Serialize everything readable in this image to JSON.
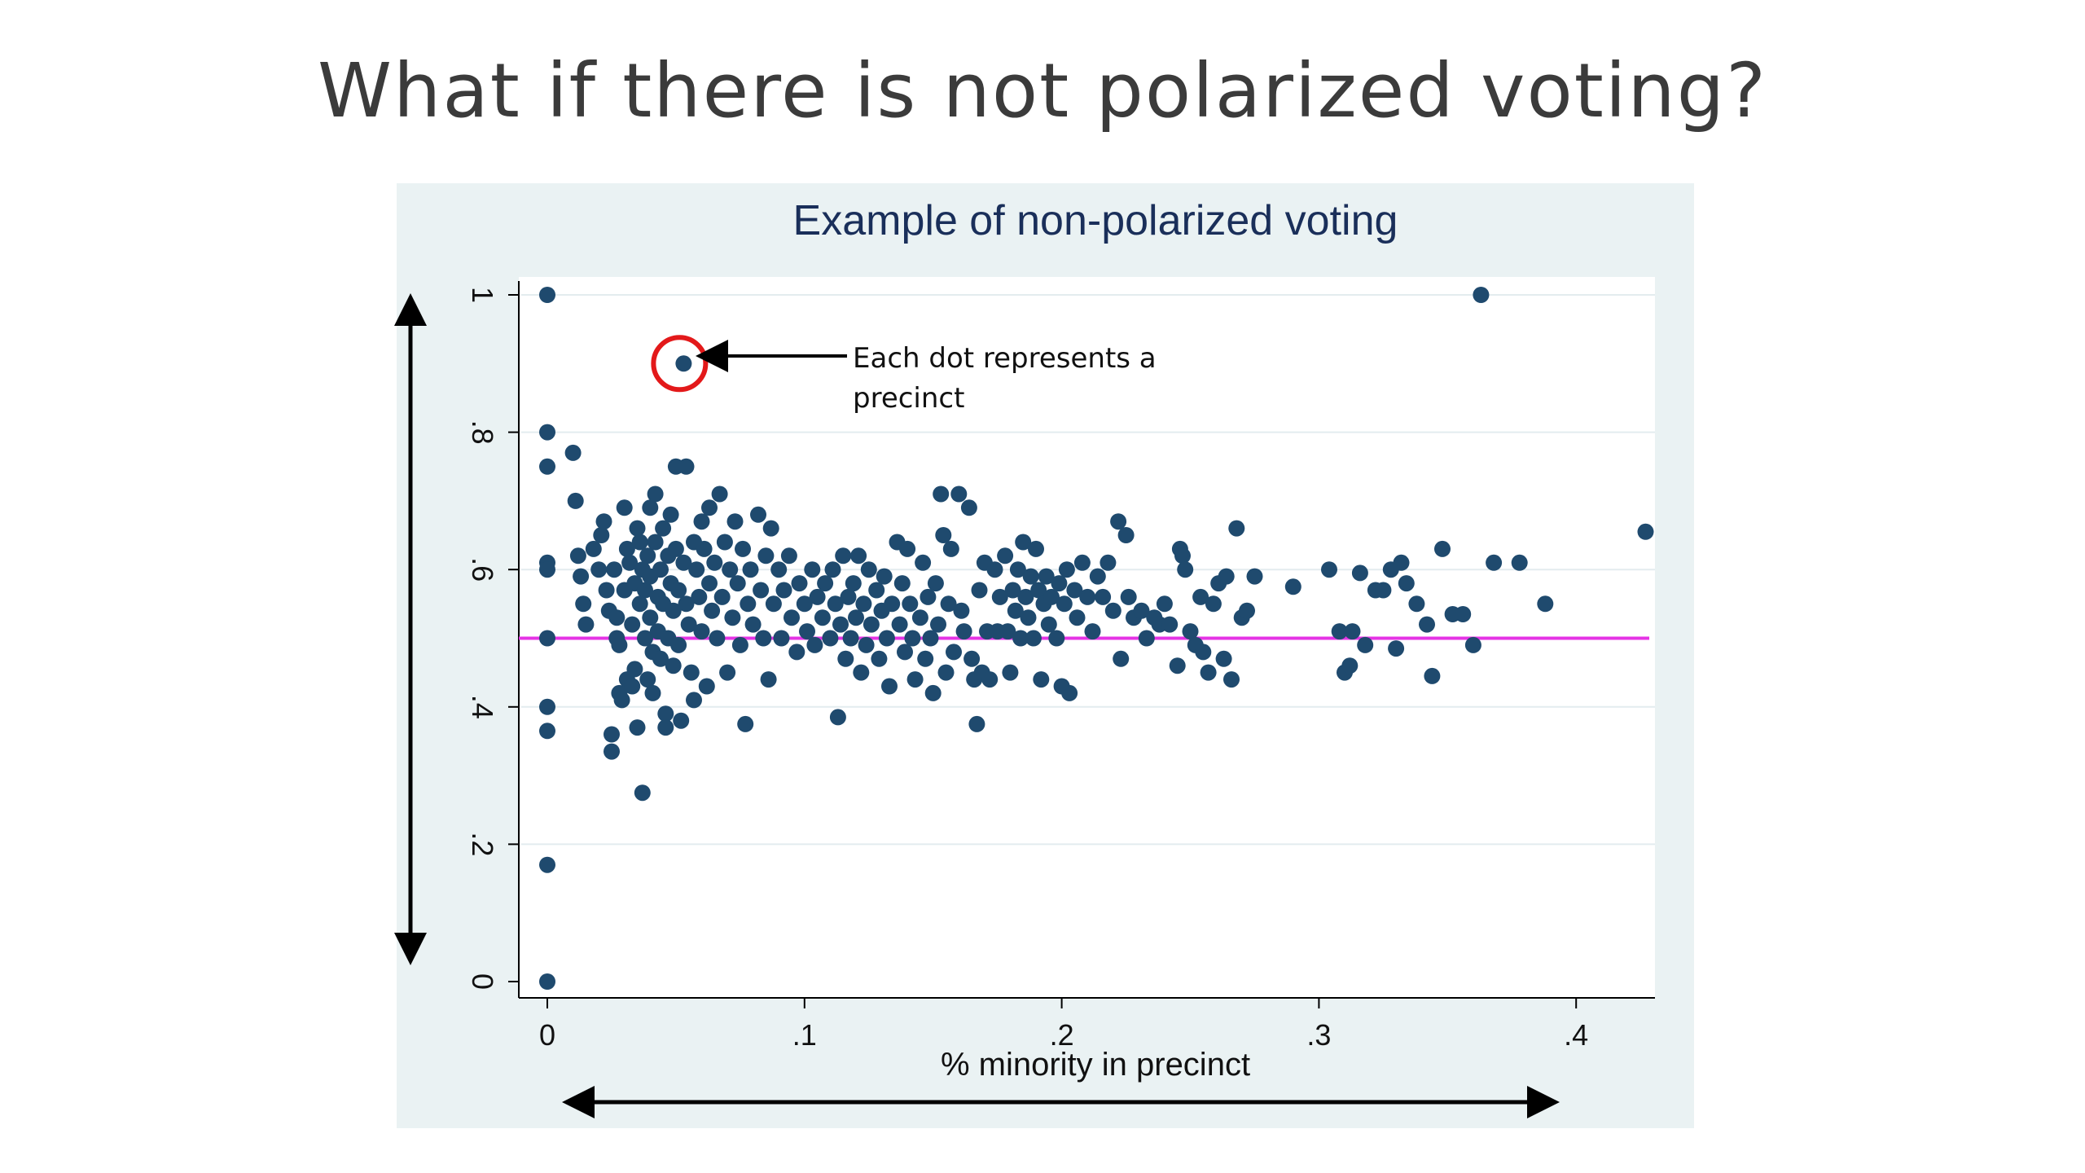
{
  "slide": {
    "title": "What if there is not polarized voting?"
  },
  "annotation": {
    "line1": "Each dot represents a",
    "line2": "precinct",
    "highlight_color": "#e3191a"
  },
  "colors": {
    "plot_background": "#eaf2f3",
    "inner_plot": "#ffffff",
    "dot": "#1f4a6e",
    "reference_line": "#e533e5",
    "title_text": "#1a2f5a",
    "arrows": "#000000"
  },
  "chart_data": {
    "type": "scatter",
    "title": "Example of non-polarized voting",
    "xlabel": "% minority in precinct",
    "ylabel": "",
    "xlim": [
      0,
      0.435
    ],
    "ylim": [
      0,
      1
    ],
    "xticks": [
      "0",
      ".1",
      ".2",
      ".3",
      ".4"
    ],
    "yticks": [
      "0",
      ".2",
      ".4",
      ".6",
      ".8",
      "1"
    ],
    "grid": "horizontal",
    "legend": "none",
    "reference_line_y": 0.5,
    "highlighted_point": [
      0.053,
      0.9
    ],
    "points": [
      [
        0.0,
        1.0
      ],
      [
        0.0,
        0.8
      ],
      [
        0.0,
        0.75
      ],
      [
        0.0,
        0.61
      ],
      [
        0.0,
        0.6
      ],
      [
        0.0,
        0.5
      ],
      [
        0.0,
        0.4
      ],
      [
        0.0,
        0.365
      ],
      [
        0.0,
        0.17
      ],
      [
        0.0,
        0.0
      ],
      [
        0.053,
        0.9
      ],
      [
        0.363,
        1.0
      ],
      [
        0.01,
        0.77
      ],
      [
        0.011,
        0.7
      ],
      [
        0.012,
        0.62
      ],
      [
        0.013,
        0.59
      ],
      [
        0.014,
        0.55
      ],
      [
        0.015,
        0.52
      ],
      [
        0.018,
        0.63
      ],
      [
        0.02,
        0.6
      ],
      [
        0.021,
        0.65
      ],
      [
        0.022,
        0.67
      ],
      [
        0.023,
        0.57
      ],
      [
        0.024,
        0.54
      ],
      [
        0.025,
        0.36
      ],
      [
        0.025,
        0.335
      ],
      [
        0.026,
        0.6
      ],
      [
        0.027,
        0.5
      ],
      [
        0.027,
        0.53
      ],
      [
        0.028,
        0.49
      ],
      [
        0.028,
        0.42
      ],
      [
        0.029,
        0.41
      ],
      [
        0.03,
        0.69
      ],
      [
        0.03,
        0.57
      ],
      [
        0.031,
        0.63
      ],
      [
        0.031,
        0.44
      ],
      [
        0.032,
        0.61
      ],
      [
        0.033,
        0.52
      ],
      [
        0.033,
        0.43
      ],
      [
        0.034,
        0.58
      ],
      [
        0.034,
        0.455
      ],
      [
        0.035,
        0.66
      ],
      [
        0.035,
        0.37
      ],
      [
        0.036,
        0.64
      ],
      [
        0.036,
        0.55
      ],
      [
        0.037,
        0.6
      ],
      [
        0.037,
        0.275
      ],
      [
        0.038,
        0.57
      ],
      [
        0.038,
        0.5
      ],
      [
        0.039,
        0.62
      ],
      [
        0.039,
        0.44
      ],
      [
        0.04,
        0.69
      ],
      [
        0.04,
        0.59
      ],
      [
        0.04,
        0.53
      ],
      [
        0.041,
        0.48
      ],
      [
        0.041,
        0.42
      ],
      [
        0.042,
        0.71
      ],
      [
        0.042,
        0.64
      ],
      [
        0.043,
        0.56
      ],
      [
        0.043,
        0.51
      ],
      [
        0.044,
        0.6
      ],
      [
        0.044,
        0.47
      ],
      [
        0.045,
        0.66
      ],
      [
        0.045,
        0.55
      ],
      [
        0.046,
        0.39
      ],
      [
        0.046,
        0.37
      ],
      [
        0.047,
        0.62
      ],
      [
        0.047,
        0.5
      ],
      [
        0.048,
        0.68
      ],
      [
        0.048,
        0.58
      ],
      [
        0.049,
        0.54
      ],
      [
        0.049,
        0.46
      ],
      [
        0.05,
        0.75
      ],
      [
        0.05,
        0.63
      ],
      [
        0.051,
        0.57
      ],
      [
        0.051,
        0.49
      ],
      [
        0.052,
        0.38
      ],
      [
        0.053,
        0.61
      ],
      [
        0.054,
        0.75
      ],
      [
        0.054,
        0.55
      ],
      [
        0.055,
        0.52
      ],
      [
        0.056,
        0.45
      ],
      [
        0.057,
        0.64
      ],
      [
        0.057,
        0.41
      ],
      [
        0.058,
        0.6
      ],
      [
        0.059,
        0.56
      ],
      [
        0.06,
        0.67
      ],
      [
        0.06,
        0.51
      ],
      [
        0.061,
        0.63
      ],
      [
        0.062,
        0.43
      ],
      [
        0.063,
        0.69
      ],
      [
        0.063,
        0.58
      ],
      [
        0.064,
        0.54
      ],
      [
        0.065,
        0.61
      ],
      [
        0.066,
        0.5
      ],
      [
        0.067,
        0.71
      ],
      [
        0.068,
        0.56
      ],
      [
        0.069,
        0.64
      ],
      [
        0.07,
        0.45
      ],
      [
        0.071,
        0.6
      ],
      [
        0.072,
        0.53
      ],
      [
        0.073,
        0.67
      ],
      [
        0.074,
        0.58
      ],
      [
        0.075,
        0.49
      ],
      [
        0.076,
        0.63
      ],
      [
        0.077,
        0.375
      ],
      [
        0.078,
        0.55
      ],
      [
        0.079,
        0.6
      ],
      [
        0.08,
        0.52
      ],
      [
        0.082,
        0.68
      ],
      [
        0.083,
        0.57
      ],
      [
        0.084,
        0.5
      ],
      [
        0.085,
        0.62
      ],
      [
        0.086,
        0.44
      ],
      [
        0.087,
        0.66
      ],
      [
        0.088,
        0.55
      ],
      [
        0.09,
        0.6
      ],
      [
        0.091,
        0.5
      ],
      [
        0.092,
        0.57
      ],
      [
        0.094,
        0.62
      ],
      [
        0.095,
        0.53
      ],
      [
        0.097,
        0.48
      ],
      [
        0.098,
        0.58
      ],
      [
        0.1,
        0.55
      ],
      [
        0.101,
        0.51
      ],
      [
        0.103,
        0.6
      ],
      [
        0.104,
        0.49
      ],
      [
        0.105,
        0.56
      ],
      [
        0.107,
        0.53
      ],
      [
        0.108,
        0.58
      ],
      [
        0.11,
        0.5
      ],
      [
        0.111,
        0.6
      ],
      [
        0.112,
        0.55
      ],
      [
        0.113,
        0.385
      ],
      [
        0.114,
        0.52
      ],
      [
        0.115,
        0.62
      ],
      [
        0.116,
        0.47
      ],
      [
        0.117,
        0.56
      ],
      [
        0.118,
        0.5
      ],
      [
        0.119,
        0.58
      ],
      [
        0.12,
        0.53
      ],
      [
        0.121,
        0.62
      ],
      [
        0.122,
        0.45
      ],
      [
        0.123,
        0.55
      ],
      [
        0.124,
        0.49
      ],
      [
        0.125,
        0.6
      ],
      [
        0.126,
        0.52
      ],
      [
        0.128,
        0.57
      ],
      [
        0.129,
        0.47
      ],
      [
        0.13,
        0.54
      ],
      [
        0.131,
        0.59
      ],
      [
        0.132,
        0.5
      ],
      [
        0.133,
        0.43
      ],
      [
        0.134,
        0.55
      ],
      [
        0.136,
        0.64
      ],
      [
        0.137,
        0.52
      ],
      [
        0.138,
        0.58
      ],
      [
        0.139,
        0.48
      ],
      [
        0.14,
        0.63
      ],
      [
        0.141,
        0.55
      ],
      [
        0.142,
        0.5
      ],
      [
        0.143,
        0.44
      ],
      [
        0.145,
        0.53
      ],
      [
        0.146,
        0.61
      ],
      [
        0.147,
        0.47
      ],
      [
        0.148,
        0.56
      ],
      [
        0.149,
        0.5
      ],
      [
        0.15,
        0.42
      ],
      [
        0.151,
        0.58
      ],
      [
        0.152,
        0.52
      ],
      [
        0.153,
        0.71
      ],
      [
        0.154,
        0.65
      ],
      [
        0.155,
        0.45
      ],
      [
        0.156,
        0.55
      ],
      [
        0.157,
        0.63
      ],
      [
        0.158,
        0.48
      ],
      [
        0.16,
        0.71
      ],
      [
        0.161,
        0.54
      ],
      [
        0.162,
        0.51
      ],
      [
        0.164,
        0.69
      ],
      [
        0.165,
        0.47
      ],
      [
        0.166,
        0.44
      ],
      [
        0.167,
        0.375
      ],
      [
        0.168,
        0.57
      ],
      [
        0.169,
        0.45
      ],
      [
        0.17,
        0.61
      ],
      [
        0.171,
        0.51
      ],
      [
        0.172,
        0.44
      ],
      [
        0.174,
        0.6
      ],
      [
        0.175,
        0.51
      ],
      [
        0.176,
        0.56
      ],
      [
        0.178,
        0.62
      ],
      [
        0.179,
        0.51
      ],
      [
        0.18,
        0.45
      ],
      [
        0.181,
        0.57
      ],
      [
        0.182,
        0.54
      ],
      [
        0.183,
        0.6
      ],
      [
        0.184,
        0.5
      ],
      [
        0.185,
        0.64
      ],
      [
        0.186,
        0.56
      ],
      [
        0.187,
        0.53
      ],
      [
        0.188,
        0.59
      ],
      [
        0.189,
        0.5
      ],
      [
        0.19,
        0.63
      ],
      [
        0.191,
        0.57
      ],
      [
        0.192,
        0.44
      ],
      [
        0.193,
        0.55
      ],
      [
        0.194,
        0.59
      ],
      [
        0.195,
        0.52
      ],
      [
        0.196,
        0.56
      ],
      [
        0.198,
        0.5
      ],
      [
        0.199,
        0.58
      ],
      [
        0.2,
        0.43
      ],
      [
        0.201,
        0.55
      ],
      [
        0.202,
        0.6
      ],
      [
        0.203,
        0.42
      ],
      [
        0.205,
        0.57
      ],
      [
        0.206,
        0.53
      ],
      [
        0.208,
        0.61
      ],
      [
        0.21,
        0.56
      ],
      [
        0.212,
        0.51
      ],
      [
        0.214,
        0.59
      ],
      [
        0.216,
        0.56
      ],
      [
        0.218,
        0.61
      ],
      [
        0.22,
        0.54
      ],
      [
        0.222,
        0.67
      ],
      [
        0.223,
        0.47
      ],
      [
        0.225,
        0.65
      ],
      [
        0.226,
        0.56
      ],
      [
        0.228,
        0.53
      ],
      [
        0.231,
        0.54
      ],
      [
        0.233,
        0.5
      ],
      [
        0.236,
        0.53
      ],
      [
        0.238,
        0.52
      ],
      [
        0.24,
        0.55
      ],
      [
        0.242,
        0.52
      ],
      [
        0.245,
        0.46
      ],
      [
        0.246,
        0.63
      ],
      [
        0.247,
        0.62
      ],
      [
        0.248,
        0.6
      ],
      [
        0.25,
        0.51
      ],
      [
        0.252,
        0.49
      ],
      [
        0.254,
        0.56
      ],
      [
        0.255,
        0.48
      ],
      [
        0.257,
        0.45
      ],
      [
        0.259,
        0.55
      ],
      [
        0.261,
        0.58
      ],
      [
        0.263,
        0.47
      ],
      [
        0.264,
        0.59
      ],
      [
        0.266,
        0.44
      ],
      [
        0.268,
        0.66
      ],
      [
        0.27,
        0.53
      ],
      [
        0.272,
        0.54
      ],
      [
        0.275,
        0.59
      ],
      [
        0.29,
        0.575
      ],
      [
        0.304,
        0.6
      ],
      [
        0.308,
        0.51
      ],
      [
        0.31,
        0.45
      ],
      [
        0.312,
        0.46
      ],
      [
        0.313,
        0.51
      ],
      [
        0.316,
        0.595
      ],
      [
        0.318,
        0.49
      ],
      [
        0.322,
        0.57
      ],
      [
        0.325,
        0.57
      ],
      [
        0.328,
        0.6
      ],
      [
        0.33,
        0.485
      ],
      [
        0.332,
        0.61
      ],
      [
        0.334,
        0.58
      ],
      [
        0.338,
        0.55
      ],
      [
        0.342,
        0.52
      ],
      [
        0.344,
        0.445
      ],
      [
        0.348,
        0.63
      ],
      [
        0.352,
        0.535
      ],
      [
        0.356,
        0.535
      ],
      [
        0.36,
        0.49
      ],
      [
        0.368,
        0.61
      ],
      [
        0.378,
        0.61
      ],
      [
        0.388,
        0.55
      ],
      [
        0.427,
        0.655
      ]
    ]
  }
}
